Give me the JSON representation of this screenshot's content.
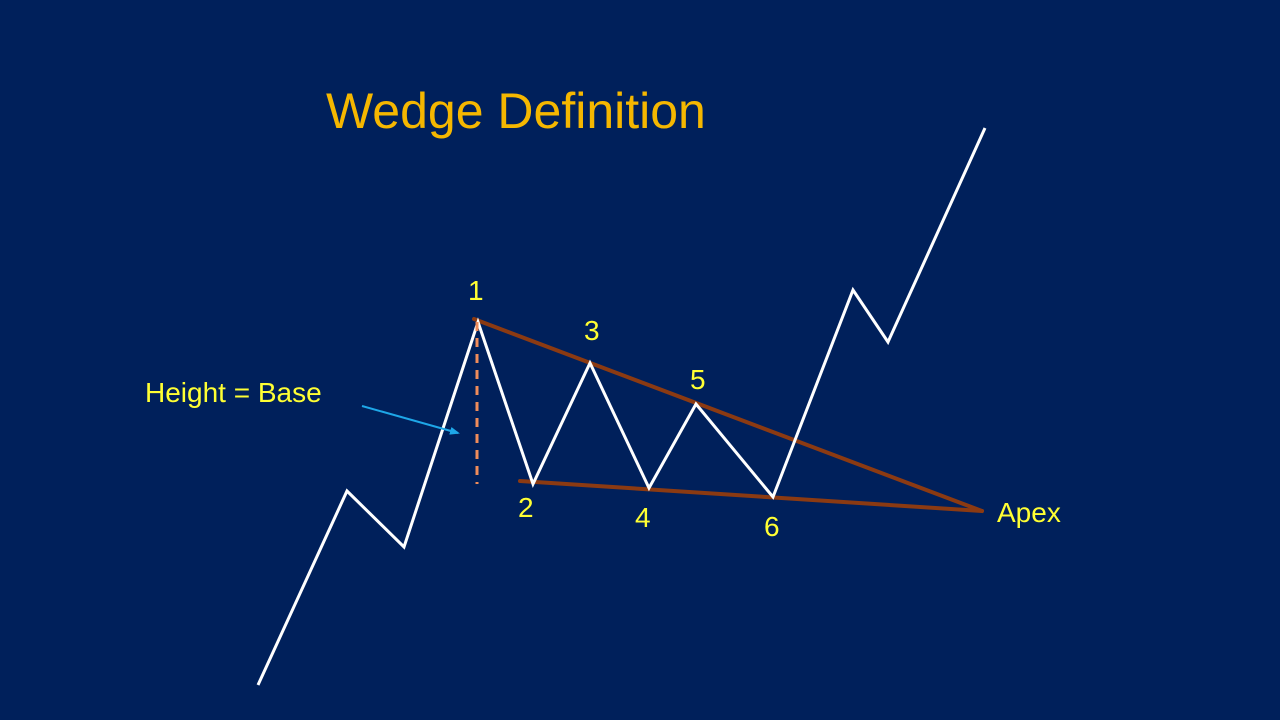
{
  "slide": {
    "title": "Wedge Definition"
  },
  "diagram": {
    "point_labels": [
      "1",
      "2",
      "3",
      "4",
      "5",
      "6"
    ],
    "apex_label": "Apex",
    "height_label": "Height = Base"
  },
  "colors": {
    "background": "#00205b",
    "title": "#f5b700",
    "labels": "#ffff33",
    "price_line": "#ffffff",
    "trendlines": "#8b3a12",
    "height_marker": "#f08c5a",
    "pointer_arrow": "#1ea7e8"
  }
}
